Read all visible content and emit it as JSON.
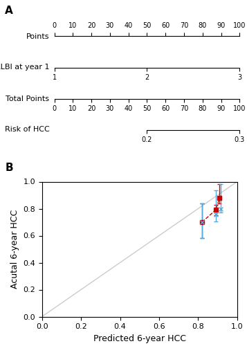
{
  "chart_data": [
    {
      "type": "scale",
      "title": "A",
      "ylabel": "Points",
      "xlim": [
        0,
        100
      ],
      "xticks": [
        0,
        10,
        20,
        30,
        40,
        50,
        60,
        70,
        80,
        90,
        100
      ]
    },
    {
      "type": "scale",
      "ylabel": "ALBI at year 1",
      "xlim": [
        1,
        3
      ],
      "xticks": [
        1,
        2,
        3
      ]
    },
    {
      "type": "scale",
      "ylabel": "Total Points",
      "xlim": [
        0,
        100
      ],
      "xticks": [
        0,
        10,
        20,
        30,
        40,
        50,
        60,
        70,
        80,
        90,
        100
      ]
    },
    {
      "type": "scale",
      "ylabel": "Risk of HCC",
      "xlim": [
        0.2,
        0.3
      ],
      "xticks": [
        0.2,
        0.3
      ]
    },
    {
      "type": "scatter",
      "title": "B",
      "xlabel": "Predicted 6-year HCC",
      "ylabel": "Acutal 6-year HCC",
      "xlim": [
        0.0,
        1.0
      ],
      "ylim": [
        0.0,
        1.0
      ],
      "xticks": [
        0.0,
        0.2,
        0.4,
        0.6,
        0.8,
        1.0
      ],
      "yticks": [
        0.0,
        0.2,
        0.4,
        0.6,
        0.8,
        1.0
      ],
      "series": [
        {
          "type": "line",
          "line_style": "solid",
          "color": "#cccccc",
          "x": [
            0,
            1
          ],
          "values": [
            0,
            1
          ]
        },
        {
          "type": "line",
          "line_style": "dashed",
          "marker": "square",
          "color": "#cc0000",
          "x": [
            0.82,
            0.89,
            0.91
          ],
          "values": [
            0.7,
            0.79,
            0.88
          ],
          "yerr_low": [
            0.12,
            0.04,
            0.04
          ],
          "yerr_high": [
            0.14,
            0.04,
            0.1
          ]
        },
        {
          "type": "scatter",
          "marker": "x",
          "color": "#55aadd",
          "x": [
            0.82,
            0.89,
            0.915
          ],
          "values": [
            0.7,
            0.755,
            0.8
          ],
          "yerr_low": [
            0.12,
            0.05,
            0.03
          ],
          "yerr_high": [
            0.14,
            0.18,
            0.18
          ]
        }
      ]
    }
  ]
}
